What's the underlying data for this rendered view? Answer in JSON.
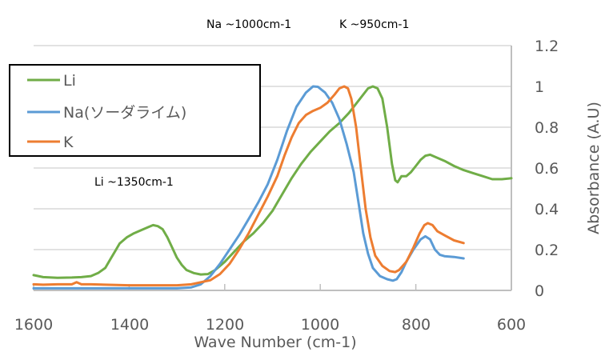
{
  "chart_data": {
    "type": "line",
    "title": "",
    "xlabel": "Wave Number (cm-1)",
    "ylabel": "Absorbance (A.U)",
    "xlim": [
      1600,
      600
    ],
    "x_reversed": true,
    "ylim": [
      0,
      1.2
    ],
    "y_axis_position": "right",
    "grid": true,
    "legend_position": "top-left",
    "x_ticks": [
      "1600",
      "1400",
      "1200",
      "1000",
      "800",
      "600"
    ],
    "y_ticks": [
      "0",
      "0.2",
      "0.4",
      "0.6",
      "0.8",
      "1",
      "1.2"
    ],
    "annotations": [
      {
        "text": "Na ~1000cm-1"
      },
      {
        "text": "K ~950cm-1"
      },
      {
        "text": "Li ~1350cm-1"
      }
    ],
    "series": [
      {
        "name": "Li",
        "color": "#70AD47",
        "points": [
          [
            1600,
            0.075
          ],
          [
            1580,
            0.065
          ],
          [
            1550,
            0.062
          ],
          [
            1520,
            0.063
          ],
          [
            1500,
            0.065
          ],
          [
            1480,
            0.07
          ],
          [
            1465,
            0.085
          ],
          [
            1450,
            0.11
          ],
          [
            1440,
            0.15
          ],
          [
            1430,
            0.19
          ],
          [
            1420,
            0.23
          ],
          [
            1405,
            0.26
          ],
          [
            1390,
            0.28
          ],
          [
            1375,
            0.295
          ],
          [
            1360,
            0.31
          ],
          [
            1350,
            0.32
          ],
          [
            1340,
            0.315
          ],
          [
            1330,
            0.3
          ],
          [
            1320,
            0.26
          ],
          [
            1310,
            0.21
          ],
          [
            1300,
            0.16
          ],
          [
            1290,
            0.125
          ],
          [
            1280,
            0.1
          ],
          [
            1265,
            0.085
          ],
          [
            1250,
            0.078
          ],
          [
            1235,
            0.08
          ],
          [
            1220,
            0.1
          ],
          [
            1200,
            0.14
          ],
          [
            1180,
            0.19
          ],
          [
            1160,
            0.24
          ],
          [
            1140,
            0.28
          ],
          [
            1120,
            0.33
          ],
          [
            1100,
            0.39
          ],
          [
            1080,
            0.47
          ],
          [
            1060,
            0.55
          ],
          [
            1040,
            0.62
          ],
          [
            1020,
            0.68
          ],
          [
            1000,
            0.73
          ],
          [
            980,
            0.78
          ],
          [
            960,
            0.82
          ],
          [
            940,
            0.87
          ],
          [
            920,
            0.93
          ],
          [
            900,
            0.99
          ],
          [
            890,
            1.0
          ],
          [
            880,
            0.99
          ],
          [
            870,
            0.94
          ],
          [
            860,
            0.8
          ],
          [
            850,
            0.62
          ],
          [
            843,
            0.54
          ],
          [
            838,
            0.53
          ],
          [
            830,
            0.56
          ],
          [
            820,
            0.56
          ],
          [
            810,
            0.58
          ],
          [
            800,
            0.61
          ],
          [
            790,
            0.64
          ],
          [
            780,
            0.66
          ],
          [
            770,
            0.665
          ],
          [
            760,
            0.655
          ],
          [
            740,
            0.635
          ],
          [
            720,
            0.61
          ],
          [
            700,
            0.59
          ],
          [
            680,
            0.575
          ],
          [
            660,
            0.56
          ],
          [
            640,
            0.545
          ],
          [
            620,
            0.545
          ],
          [
            600,
            0.55
          ]
        ]
      },
      {
        "name": "Na(ソーダライム)",
        "color": "#5B9BD5",
        "points": [
          [
            1600,
            0.01
          ],
          [
            1550,
            0.01
          ],
          [
            1500,
            0.01
          ],
          [
            1450,
            0.01
          ],
          [
            1400,
            0.01
          ],
          [
            1350,
            0.01
          ],
          [
            1300,
            0.01
          ],
          [
            1270,
            0.015
          ],
          [
            1250,
            0.03
          ],
          [
            1230,
            0.07
          ],
          [
            1210,
            0.13
          ],
          [
            1190,
            0.2
          ],
          [
            1170,
            0.27
          ],
          [
            1150,
            0.35
          ],
          [
            1130,
            0.43
          ],
          [
            1110,
            0.52
          ],
          [
            1090,
            0.64
          ],
          [
            1070,
            0.78
          ],
          [
            1050,
            0.9
          ],
          [
            1030,
            0.97
          ],
          [
            1015,
            1.0
          ],
          [
            1005,
            0.998
          ],
          [
            990,
            0.97
          ],
          [
            975,
            0.92
          ],
          [
            960,
            0.84
          ],
          [
            945,
            0.72
          ],
          [
            930,
            0.58
          ],
          [
            920,
            0.43
          ],
          [
            910,
            0.28
          ],
          [
            900,
            0.18
          ],
          [
            890,
            0.11
          ],
          [
            875,
            0.07
          ],
          [
            860,
            0.055
          ],
          [
            848,
            0.048
          ],
          [
            840,
            0.055
          ],
          [
            830,
            0.09
          ],
          [
            820,
            0.14
          ],
          [
            805,
            0.2
          ],
          [
            790,
            0.25
          ],
          [
            780,
            0.265
          ],
          [
            770,
            0.25
          ],
          [
            760,
            0.2
          ],
          [
            750,
            0.175
          ],
          [
            740,
            0.168
          ],
          [
            720,
            0.164
          ],
          [
            700,
            0.157
          ]
        ]
      },
      {
        "name": "K",
        "color": "#ED7D31",
        "points": [
          [
            1600,
            0.03
          ],
          [
            1580,
            0.028
          ],
          [
            1550,
            0.03
          ],
          [
            1520,
            0.03
          ],
          [
            1510,
            0.04
          ],
          [
            1500,
            0.03
          ],
          [
            1480,
            0.03
          ],
          [
            1450,
            0.028
          ],
          [
            1400,
            0.025
          ],
          [
            1350,
            0.025
          ],
          [
            1300,
            0.025
          ],
          [
            1270,
            0.03
          ],
          [
            1250,
            0.04
          ],
          [
            1230,
            0.05
          ],
          [
            1210,
            0.08
          ],
          [
            1190,
            0.13
          ],
          [
            1170,
            0.2
          ],
          [
            1150,
            0.28
          ],
          [
            1130,
            0.37
          ],
          [
            1110,
            0.46
          ],
          [
            1090,
            0.56
          ],
          [
            1075,
            0.66
          ],
          [
            1060,
            0.75
          ],
          [
            1045,
            0.82
          ],
          [
            1030,
            0.86
          ],
          [
            1015,
            0.88
          ],
          [
            1000,
            0.895
          ],
          [
            985,
            0.92
          ],
          [
            970,
            0.96
          ],
          [
            960,
            0.99
          ],
          [
            950,
            1.0
          ],
          [
            942,
            0.99
          ],
          [
            935,
            0.94
          ],
          [
            925,
            0.8
          ],
          [
            915,
            0.6
          ],
          [
            905,
            0.4
          ],
          [
            895,
            0.26
          ],
          [
            885,
            0.17
          ],
          [
            870,
            0.12
          ],
          [
            855,
            0.095
          ],
          [
            843,
            0.09
          ],
          [
            835,
            0.1
          ],
          [
            820,
            0.14
          ],
          [
            805,
            0.21
          ],
          [
            792,
            0.28
          ],
          [
            782,
            0.32
          ],
          [
            775,
            0.33
          ],
          [
            765,
            0.32
          ],
          [
            755,
            0.29
          ],
          [
            740,
            0.27
          ],
          [
            720,
            0.245
          ],
          [
            700,
            0.232
          ]
        ]
      }
    ]
  }
}
